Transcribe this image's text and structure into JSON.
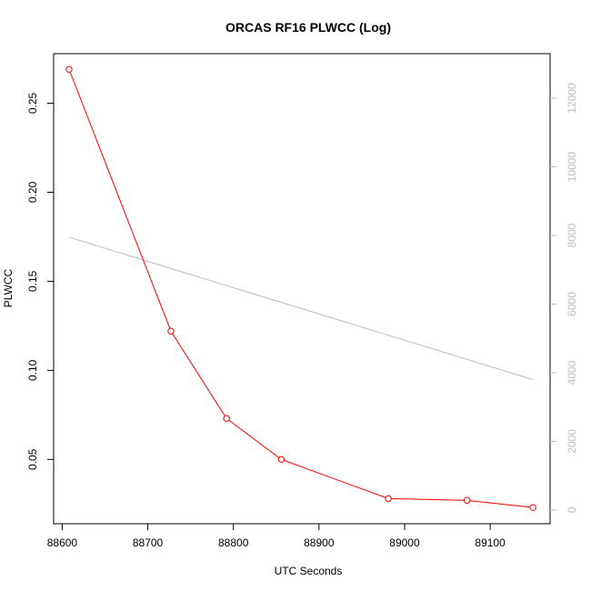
{
  "chart_data": {
    "type": "line",
    "title": "ORCAS RF16 PLWCC (Log)",
    "xlabel": "UTC Seconds",
    "ylabel": "PLWCC",
    "y2label": "",
    "xlim": [
      88590,
      89170
    ],
    "ylim": [
      0.0139,
      0.2778
    ],
    "y2lim": [
      -400,
      13300
    ],
    "x_ticks": [
      88600,
      88700,
      88800,
      88900,
      89000,
      89100
    ],
    "y_ticks": [
      0.05,
      0.1,
      0.15,
      0.2,
      0.25
    ],
    "y2_ticks": [
      0,
      2000,
      4000,
      6000,
      8000,
      10000,
      12000
    ],
    "x_tick_labels": [
      "88600",
      "88700",
      "88800",
      "88900",
      "89000",
      "89100"
    ],
    "y_tick_labels": [
      "0.05",
      "0.10",
      "0.15",
      "0.20",
      "0.25"
    ],
    "y2_tick_labels": [
      "0",
      "2000",
      "4000",
      "6000",
      "8000",
      "10000",
      "12000"
    ],
    "grid": false,
    "series": [
      {
        "axis": "left",
        "color": "#ff0000",
        "marker": "open-circle",
        "x": [
          88608,
          88727,
          88792,
          88856,
          88981,
          89073,
          89150
        ],
        "y": [
          0.269,
          0.122,
          0.073,
          0.05,
          0.028,
          0.027,
          0.023
        ]
      },
      {
        "axis": "right",
        "color": "#bebebe",
        "marker": "none",
        "x": [
          88608,
          89150
        ],
        "y": [
          7950,
          3800
        ]
      }
    ]
  }
}
